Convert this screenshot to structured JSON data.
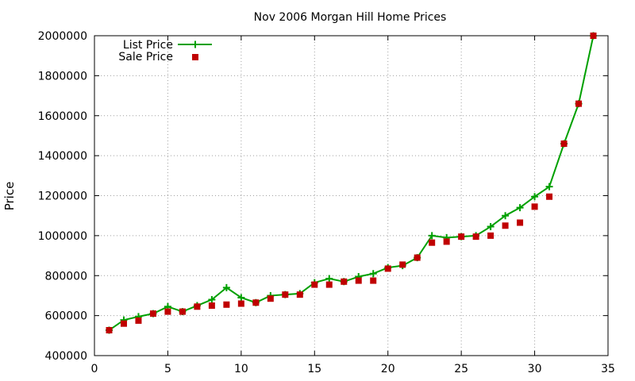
{
  "chart_data": {
    "type": "line",
    "title": "Nov 2006 Morgan Hill Home Prices",
    "xlabel": "",
    "ylabel": "Price",
    "xlim": [
      0,
      35
    ],
    "ylim": [
      400000,
      2000000
    ],
    "xticks": [
      0,
      5,
      10,
      15,
      20,
      25,
      30,
      35
    ],
    "yticks": [
      400000,
      600000,
      800000,
      1000000,
      1200000,
      1400000,
      1600000,
      1800000,
      2000000
    ],
    "grid": true,
    "legend": "top-left",
    "series": [
      {
        "name": "List Price",
        "style": "line-plus",
        "color": "#00a000",
        "x": [
          1,
          2,
          3,
          4,
          5,
          6,
          7,
          8,
          9,
          10,
          11,
          12,
          13,
          14,
          15,
          16,
          17,
          18,
          19,
          20,
          21,
          22,
          23,
          24,
          25,
          26,
          27,
          28,
          29,
          30,
          31,
          32,
          33,
          34
        ],
        "values": [
          527000,
          578000,
          595000,
          610000,
          645000,
          620000,
          650000,
          680000,
          740000,
          690000,
          665000,
          700000,
          705000,
          710000,
          765000,
          785000,
          770000,
          795000,
          810000,
          840000,
          850000,
          890000,
          1000000,
          990000,
          995000,
          1000000,
          1045000,
          1100000,
          1140000,
          1195000,
          1245000,
          1460000,
          1660000,
          2000000
        ]
      },
      {
        "name": "Sale Price",
        "style": "square",
        "color": "#c00000",
        "x": [
          1,
          2,
          3,
          4,
          5,
          6,
          7,
          8,
          9,
          10,
          11,
          12,
          13,
          14,
          15,
          16,
          17,
          18,
          19,
          20,
          21,
          22,
          23,
          24,
          25,
          26,
          27,
          28,
          29,
          30,
          31,
          32,
          33,
          34
        ],
        "values": [
          527000,
          560000,
          575000,
          610000,
          620000,
          620000,
          645000,
          650000,
          655000,
          660000,
          665000,
          685000,
          705000,
          705000,
          755000,
          755000,
          770000,
          775000,
          775000,
          835000,
          855000,
          890000,
          965000,
          970000,
          995000,
          995000,
          1000000,
          1050000,
          1065000,
          1145000,
          1195000,
          1460000,
          1660000,
          2000000
        ]
      }
    ]
  }
}
